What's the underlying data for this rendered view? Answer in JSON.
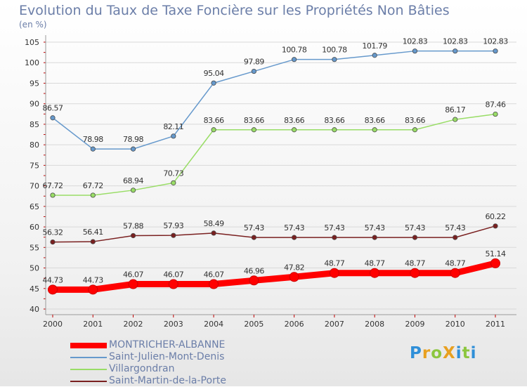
{
  "header": {
    "title": "Evolution du Taux de Taxe Foncière sur les Propriétés Non Bâties",
    "subtitle": "(en %)"
  },
  "logo": {
    "text": "ProXiti",
    "letters": [
      "P",
      "r",
      "o",
      "X",
      "i",
      "t",
      "i"
    ],
    "colors": [
      "#2f8fd8",
      "#e8a020",
      "#8cc63f",
      "#e8a020",
      "#2f8fd8",
      "#8cc63f",
      "#2f8fd8"
    ]
  },
  "colors": {
    "axis": "#9a9a9a",
    "grid": "#d9d9d9",
    "tick": "#c00000",
    "text": "#6b7ea8",
    "label": "#333333"
  },
  "chart_data": {
    "type": "line",
    "title": "Evolution du Taux de Taxe Foncière sur les Propriétés Non Bâties",
    "ylabel": "(en %)",
    "xlabel": "",
    "x": [
      "2000",
      "2001",
      "2002",
      "2003",
      "2004",
      "2005",
      "2006",
      "2007",
      "2008",
      "2009",
      "2010",
      "2011"
    ],
    "ylim": [
      40,
      105
    ],
    "yticks": [
      40,
      45,
      50,
      55,
      60,
      65,
      70,
      75,
      80,
      85,
      90,
      95,
      100,
      105
    ],
    "grid": true,
    "legend_position": "bottom-left",
    "series": [
      {
        "name": "MONTRICHER-ALBANNE",
        "color": "#ff0000",
        "values": [
          44.73,
          44.73,
          46.07,
          46.07,
          46.07,
          46.96,
          47.82,
          48.77,
          48.77,
          48.77,
          48.77,
          51.14
        ],
        "labels": [
          "44.73",
          "44.73",
          "46.07",
          "46.07",
          "46.07",
          "46.96",
          "47.82",
          "48.77",
          "48.77",
          "48.77",
          "48.77",
          "51.14"
        ],
        "emphasis": true
      },
      {
        "name": "Saint-Julien-Mont-Denis",
        "color": "#6699cc",
        "values": [
          86.57,
          78.98,
          78.98,
          82.11,
          95.04,
          97.89,
          100.78,
          100.78,
          101.79,
          102.83,
          102.83,
          102.83
        ],
        "labels": [
          "86.57",
          "78.98",
          "78.98",
          "82.11",
          "95.04",
          "97.89",
          "100.78",
          "100.78",
          "101.79",
          "102.83",
          "102.83",
          "102.83"
        ],
        "emphasis": false
      },
      {
        "name": "Villargondran",
        "color": "#99dd66",
        "values": [
          67.72,
          67.72,
          68.94,
          70.73,
          83.66,
          83.66,
          83.66,
          83.66,
          83.66,
          83.66,
          86.17,
          87.46
        ],
        "labels": [
          "67.72",
          "67.72",
          "68.94",
          "70.73",
          "83.66",
          "83.66",
          "83.66",
          "83.66",
          "83.66",
          "83.66",
          "86.17",
          "87.46"
        ],
        "emphasis": false
      },
      {
        "name": "Saint-Martin-de-la-Porte",
        "color": "#7a2020",
        "values": [
          56.32,
          56.41,
          57.88,
          57.93,
          58.49,
          57.43,
          57.43,
          57.43,
          57.43,
          57.43,
          57.43,
          60.22
        ],
        "labels": [
          "56.32",
          "56.41",
          "57.88",
          "57.93",
          "58.49",
          "57.43",
          "57.43",
          "57.43",
          "57.43",
          "57.43",
          "57.43",
          "60.22"
        ],
        "emphasis": false
      }
    ]
  }
}
